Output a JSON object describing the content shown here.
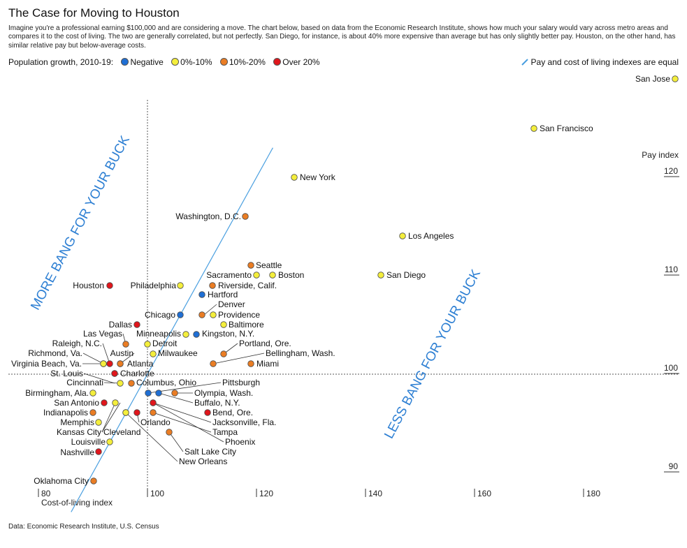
{
  "title": "The Case for Moving to Houston",
  "subtitle": "Imagine you're a professional earning $100,000 and are considering a move. The chart below, based on data from the Economic Research Institute, shows how much your salary would vary across metro areas and compares it to the cost of living. The two are generally correlated, but not perfectly. San Diego, for instance, is about 40% more expensive than average but has only slightly better pay. Houston, on the other hand, has similar relative pay but below-average costs.",
  "source": "Data: Economic Research Institute, U.S. Census",
  "legend": {
    "label": "Population growth, 2010-19:",
    "items": [
      {
        "label": "Negative",
        "color": "#1f6fd4"
      },
      {
        "label": "0%-10%",
        "color": "#f4ee3c"
      },
      {
        "label": "10%-20%",
        "color": "#ea7d24"
      },
      {
        "label": "Over 20%",
        "color": "#e0161c"
      }
    ],
    "equal_line_label": "Pay and cost of living indexes are equal",
    "equal_line_color": "#4a9fe0"
  },
  "chart_data": {
    "type": "scatter",
    "xlabel": "Cost-of-living index",
    "ylabel": "Pay index",
    "xlim": [
      78,
      194
    ],
    "ylim": [
      87,
      129
    ],
    "x_ticks": [
      80,
      100,
      120,
      140,
      160,
      180
    ],
    "y_ticks": [
      90,
      100,
      110,
      120
    ],
    "reference_lines": {
      "x": 100,
      "y": 100
    },
    "annotations": [
      {
        "text": "MORE BANG FOR YOUR BUCK",
        "color": "#2d7fd3"
      },
      {
        "text": "LESS BANG FOR YOUR BUCK",
        "color": "#2d7fd3"
      }
    ],
    "points": [
      {
        "name": "San Jose",
        "x": 193.5,
        "y": 127.8,
        "growth": "0%-10%"
      },
      {
        "name": "San Francisco",
        "x": 171,
        "y": 122.8,
        "growth": "0%-10%"
      },
      {
        "name": "New York",
        "x": 127,
        "y": 118.8,
        "growth": "0%-10%"
      },
      {
        "name": "Washington, D.C.",
        "x": 118,
        "y": 114.8,
        "growth": "10%-20%"
      },
      {
        "name": "Los Angeles",
        "x": 146.5,
        "y": 112.8,
        "growth": "0%-10%"
      },
      {
        "name": "Seattle",
        "x": 119,
        "y": 110.8,
        "growth": "10%-20%"
      },
      {
        "name": "Sacramento",
        "x": 120,
        "y": 109.8,
        "growth": "0%-10%"
      },
      {
        "name": "Boston",
        "x": 123,
        "y": 109.8,
        "growth": "0%-10%"
      },
      {
        "name": "San Diego",
        "x": 142.5,
        "y": 109.8,
        "growth": "0%-10%"
      },
      {
        "name": "Houston",
        "x": 91,
        "y": 108.8,
        "growth": "Over 20%"
      },
      {
        "name": "Philadelphia",
        "x": 104,
        "y": 108.8,
        "growth": "0%-10%"
      },
      {
        "name": "Riverside, Calif.",
        "x": 111,
        "y": 108.8,
        "growth": "10%-20%"
      },
      {
        "name": "Hartford",
        "x": 108,
        "y": 107.8,
        "growth": "Negative"
      },
      {
        "name": "Denver",
        "x": 108,
        "y": 105.8,
        "growth": "10%-20%"
      },
      {
        "name": "Chicago",
        "x": 104,
        "y": 105.8,
        "growth": "Negative"
      },
      {
        "name": "Providence",
        "x": 110,
        "y": 105.8,
        "growth": "0%-10%"
      },
      {
        "name": "Baltimore",
        "x": 112,
        "y": 104.8,
        "growth": "0%-10%"
      },
      {
        "name": "Dallas",
        "x": 96,
        "y": 104.8,
        "growth": "Over 20%"
      },
      {
        "name": "Minneapolis",
        "x": 105,
        "y": 103.8,
        "growth": "0%-10%"
      },
      {
        "name": "Kingston, N.Y.",
        "x": 107,
        "y": 103.8,
        "growth": "Negative"
      },
      {
        "name": "Las Vegas",
        "x": 94,
        "y": 102.8,
        "growth": "10%-20%"
      },
      {
        "name": "Detroit",
        "x": 98,
        "y": 102.8,
        "growth": "0%-10%"
      },
      {
        "name": "Portland, Ore.",
        "x": 112,
        "y": 101.8,
        "growth": "10%-20%"
      },
      {
        "name": "Raleigh, N.C.",
        "x": 94,
        "y": 101.8,
        "growth": "Over 20%"
      },
      {
        "name": "Milwaukee",
        "x": 99,
        "y": 101.8,
        "growth": "0%-10%"
      },
      {
        "name": "Richmond, Va.",
        "x": 91,
        "y": 100.8,
        "growth": "10%-20%"
      },
      {
        "name": "Austin",
        "x": 93,
        "y": 100.8,
        "growth": "Over 20%"
      },
      {
        "name": "Bellingham, Wash.",
        "x": 110,
        "y": 100.8,
        "growth": "10%-20%"
      },
      {
        "name": "Virginia Beach, Va.",
        "x": 90,
        "y": 100.8,
        "growth": "0%-10%"
      },
      {
        "name": "Atlanta",
        "x": 93,
        "y": 100.8,
        "growth": "10%-20%"
      },
      {
        "name": "Miami",
        "x": 116,
        "y": 100.8,
        "growth": "10%-20%"
      },
      {
        "name": "St. Louis",
        "x": 92,
        "y": 99.8,
        "growth": "0%-10%"
      },
      {
        "name": "Charlotte",
        "x": 93,
        "y": 99.8,
        "growth": "Over 20%"
      },
      {
        "name": "Cincinnati",
        "x": 92,
        "y": 98.8,
        "growth": "0%-10%"
      },
      {
        "name": "Columbus, Ohio",
        "x": 94,
        "y": 98.8,
        "growth": "10%-20%"
      },
      {
        "name": "Pittsburgh",
        "x": 100,
        "y": 97.8,
        "growth": "Negative"
      },
      {
        "name": "Birmingham, Ala.",
        "x": 88,
        "y": 97.8,
        "growth": "0%-10%"
      },
      {
        "name": "Olympia, Wash.",
        "x": 103,
        "y": 97.8,
        "growth": "10%-20%"
      },
      {
        "name": "San Antonio",
        "x": 90,
        "y": 96.8,
        "growth": "Over 20%"
      },
      {
        "name": "Buffalo, N.Y.",
        "x": 101,
        "y": 96.8,
        "growth": "Negative"
      },
      {
        "name": "Indianapolis",
        "x": 88,
        "y": 95.8,
        "growth": "10%-20%"
      },
      {
        "name": "Bend, Ore.",
        "x": 111,
        "y": 95.8,
        "growth": "Over 20%"
      },
      {
        "name": "Memphis",
        "x": 89,
        "y": 94.8,
        "growth": "0%-10%"
      },
      {
        "name": "Orlando",
        "x": 97,
        "y": 95.8,
        "growth": "Over 20%"
      },
      {
        "name": "Jacksonville, Fla.",
        "x": 101,
        "y": 95.8,
        "growth": "Over 20%"
      },
      {
        "name": "Kansas City",
        "x": 91,
        "y": 95.8,
        "growth": "0%-10%"
      },
      {
        "name": "Cleveland",
        "x": 94,
        "y": 95.8,
        "growth": "Negative"
      },
      {
        "name": "Tampa",
        "x": 101,
        "y": 94.8,
        "growth": "10%-20%"
      },
      {
        "name": "Phoenix",
        "x": 101,
        "y": 93.8,
        "growth": "Over 20%"
      },
      {
        "name": "Louisville",
        "x": 91,
        "y": 93.8,
        "growth": "0%-10%"
      },
      {
        "name": "Salt Lake City",
        "x": 104,
        "y": 93.8,
        "growth": "10%-20%"
      },
      {
        "name": "Nashville",
        "x": 88,
        "y": 92.8,
        "growth": "Over 20%"
      },
      {
        "name": "New Orleans",
        "x": 94,
        "y": 93.8,
        "growth": "0%-10%"
      },
      {
        "name": "Oklahoma City",
        "x": 88,
        "y": 89.8,
        "growth": "10%-20%"
      }
    ]
  }
}
